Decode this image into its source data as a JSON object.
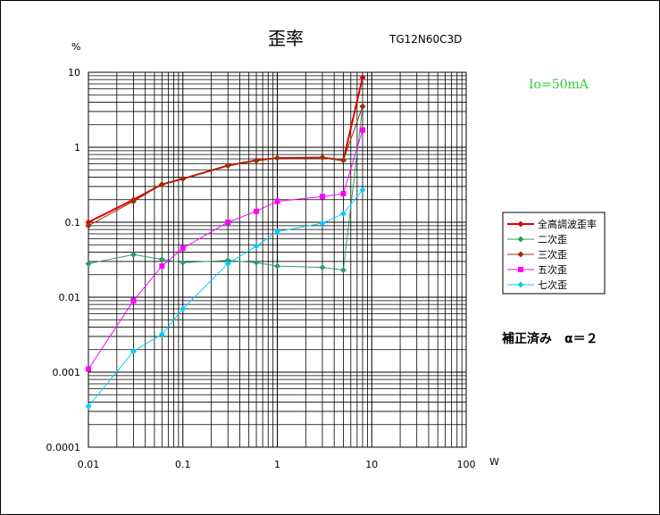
{
  "chart_data": {
    "type": "line",
    "title": "歪率",
    "model": "TG12N60C3D",
    "xlabel": "W",
    "ylabel": "%",
    "x_scale": "log",
    "y_scale": "log",
    "xlim": [
      0.01,
      100
    ],
    "ylim": [
      0.0001,
      10
    ],
    "x_ticks": [
      "0.01",
      "0.1",
      "1",
      "10",
      "100"
    ],
    "y_ticks": [
      "10",
      "1",
      "0.1",
      "0.01",
      "0.001",
      "0.0001"
    ],
    "grid": true,
    "legend_position": "right",
    "condition_label": "Io=50mA",
    "correction_label": "補正済み　α＝２",
    "series": [
      {
        "name": "全高調波歪率",
        "color": "#dd0000",
        "marker": "diamond",
        "points": [
          [
            0.01,
            0.1
          ],
          [
            0.03,
            0.2
          ],
          [
            0.06,
            0.32
          ],
          [
            0.1,
            0.38
          ],
          [
            0.3,
            0.57
          ],
          [
            0.6,
            0.67
          ],
          [
            1,
            0.72
          ],
          [
            3,
            0.73
          ],
          [
            5,
            0.67
          ],
          [
            8,
            8.5
          ]
        ]
      },
      {
        "name": "二次歪",
        "color": "#339966",
        "marker": "diamond",
        "points": [
          [
            0.01,
            0.028
          ],
          [
            0.03,
            0.037
          ],
          [
            0.06,
            0.032
          ],
          [
            0.1,
            0.029
          ],
          [
            0.3,
            0.031
          ],
          [
            0.6,
            0.029
          ],
          [
            1,
            0.026
          ],
          [
            3,
            0.025
          ],
          [
            5,
            0.023
          ],
          [
            8,
            3.5
          ]
        ]
      },
      {
        "name": "三次歪",
        "color": "#993300",
        "marker": "diamond",
        "points": [
          [
            0.01,
            0.09
          ],
          [
            0.03,
            0.19
          ],
          [
            0.06,
            0.32
          ],
          [
            0.1,
            0.38
          ],
          [
            0.3,
            0.57
          ],
          [
            0.6,
            0.66
          ],
          [
            1,
            0.72
          ],
          [
            3,
            0.73
          ],
          [
            5,
            0.67
          ],
          [
            8,
            3.5
          ]
        ]
      },
      {
        "name": "五次歪",
        "color": "#ff00ff",
        "marker": "square",
        "points": [
          [
            0.01,
            0.0011
          ],
          [
            0.03,
            0.009
          ],
          [
            0.06,
            0.026
          ],
          [
            0.1,
            0.045
          ],
          [
            0.3,
            0.1
          ],
          [
            0.6,
            0.14
          ],
          [
            1,
            0.19
          ],
          [
            3,
            0.22
          ],
          [
            5,
            0.24
          ],
          [
            8,
            1.7
          ]
        ]
      },
      {
        "name": "七次歪",
        "color": "#00ccff",
        "marker": "diamond",
        "points": [
          [
            0.01,
            0.00035
          ],
          [
            0.03,
            0.0019
          ],
          [
            0.06,
            0.0032
          ],
          [
            0.1,
            0.007
          ],
          [
            0.3,
            0.028
          ],
          [
            0.6,
            0.048
          ],
          [
            1,
            0.075
          ],
          [
            3,
            0.097
          ],
          [
            5,
            0.13
          ],
          [
            8,
            0.27
          ]
        ]
      }
    ]
  }
}
